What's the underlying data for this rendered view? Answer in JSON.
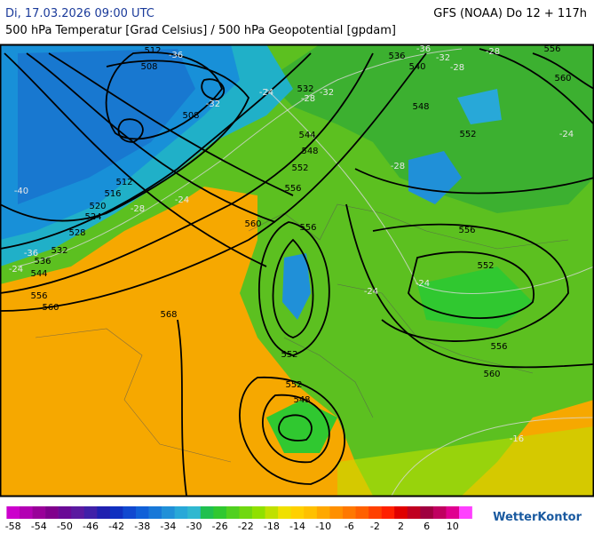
{
  "header": {
    "date": "Di, 17.03.2026 09:00 UTC",
    "model": "GFS (NOAA) Do 12 + 117h",
    "subtitle": "500 hPa Temperatur [Grad Celsius] / 500 hPa Geopotential [gpdam]"
  },
  "contour_labels": [
    512,
    508,
    508,
    512,
    516,
    520,
    524,
    528,
    532,
    536,
    544,
    556,
    560,
    568,
    560,
    556,
    552,
    548,
    544,
    532,
    536,
    540,
    548,
    552,
    556,
    560,
    556,
    552,
    556,
    552,
    556,
    560,
    552,
    548
  ],
  "temperature_labels": [
    -36,
    -32,
    -36,
    -32,
    -28,
    -28,
    -24,
    -28,
    -32,
    -28,
    -24,
    -40,
    -28,
    -24,
    -36,
    -24,
    -24,
    -24,
    -16
  ],
  "colorbar": {
    "labels": [
      -58,
      -54,
      -50,
      -46,
      -42,
      -38,
      -34,
      -30,
      -26,
      -22,
      -18,
      -14,
      -10,
      -6,
      -2,
      2,
      6,
      10
    ]
  },
  "logo": "WetterKontor"
}
